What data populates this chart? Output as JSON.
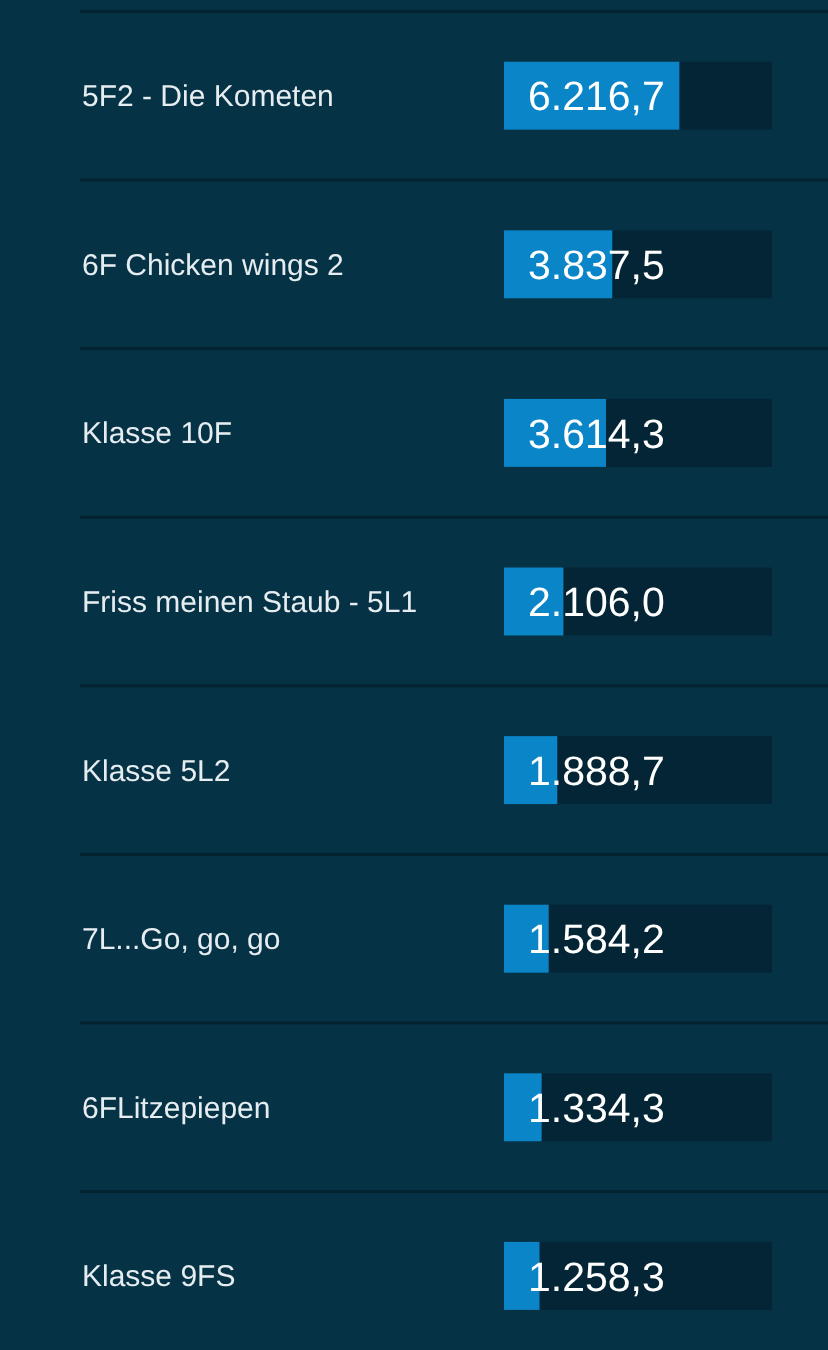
{
  "chart_data": {
    "type": "bar",
    "orientation": "horizontal",
    "categories": [
      "5F2 - Die Kometen",
      "6F Chicken wings 2",
      "Klasse 10F",
      "Friss meinen Staub - 5L1",
      "Klasse 5L2",
      "7L...Go, go, go",
      "6FLitzepiepen",
      "Klasse 9FS"
    ],
    "values": [
      6216.7,
      3837.5,
      3614.3,
      2106.0,
      1888.7,
      1584.2,
      1334.3,
      1258.3
    ],
    "value_labels": [
      "6.216,7",
      "3.837,5",
      "3.614,3",
      "2.106,0",
      "1.888,7",
      "1.584,2",
      "1.334,3",
      "1.258,3"
    ],
    "color": "#0a85c8",
    "xlim": [
      0,
      9500
    ],
    "tick_labels": "y",
    "grid": "y"
  }
}
